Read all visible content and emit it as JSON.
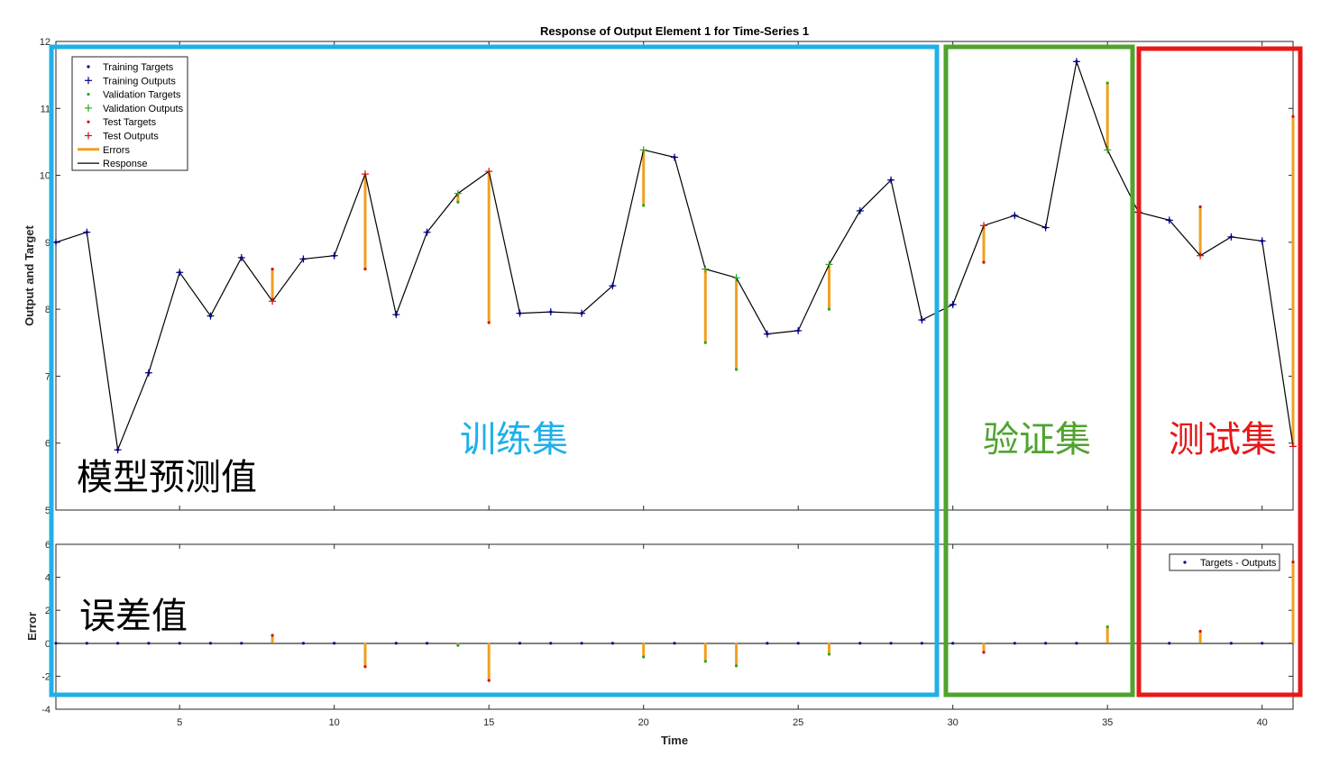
{
  "chart_data": [
    {
      "type": "line",
      "title": "Response of Output Element 1 for Time-Series 1",
      "xlabel": "",
      "ylabel": "Output and Target",
      "xlim": [
        1,
        41
      ],
      "ylim": [
        5,
        12
      ],
      "yticks": [
        5,
        6,
        7,
        8,
        9,
        10,
        11,
        12
      ],
      "xticks": [
        5,
        10,
        15,
        20,
        25,
        30,
        35,
        40
      ],
      "x": [
        1,
        2,
        3,
        4,
        5,
        6,
        7,
        8,
        9,
        10,
        11,
        12,
        13,
        14,
        15,
        16,
        17,
        18,
        19,
        20,
        21,
        22,
        23,
        24,
        25,
        26,
        27,
        28,
        29,
        30,
        31,
        32,
        33,
        34,
        35,
        36,
        37,
        38,
        39,
        40,
        41
      ],
      "series": [
        {
          "name": "Response",
          "values": [
            9.0,
            9.15,
            5.9,
            7.05,
            8.55,
            7.9,
            8.77,
            8.12,
            8.75,
            8.8,
            10.02,
            7.92,
            9.15,
            9.73,
            10.06,
            7.94,
            7.96,
            7.94,
            8.35,
            10.38,
            10.27,
            8.6,
            8.47,
            7.63,
            7.68,
            8.67,
            9.47,
            9.93,
            7.84,
            8.07,
            9.25,
            9.4,
            9.22,
            11.7,
            10.38,
            9.45,
            9.33,
            8.8,
            9.08,
            9.02,
            5.95
          ]
        },
        {
          "name": "Targets",
          "values": [
            9.0,
            9.15,
            5.9,
            7.05,
            8.55,
            7.9,
            8.77,
            8.6,
            8.75,
            8.8,
            8.6,
            7.92,
            9.15,
            9.6,
            7.8,
            7.94,
            7.96,
            7.94,
            8.35,
            9.55,
            10.27,
            7.5,
            7.1,
            7.63,
            7.68,
            8.0,
            9.47,
            9.93,
            7.84,
            8.07,
            8.7,
            9.4,
            9.22,
            11.7,
            11.38,
            9.45,
            9.33,
            9.53,
            9.08,
            9.02,
            10.88
          ]
        }
      ],
      "set_membership": [
        "train",
        "train",
        "train",
        "train",
        "train",
        "train",
        "train",
        "test",
        "train",
        "train",
        "test",
        "train",
        "train",
        "val",
        "test",
        "train",
        "train",
        "train",
        "train",
        "val",
        "train",
        "val",
        "val",
        "train",
        "train",
        "val",
        "train",
        "train",
        "train",
        "train",
        "test",
        "train",
        "train",
        "train",
        "val",
        "train",
        "train",
        "test",
        "train",
        "train",
        "test"
      ],
      "legend": {
        "placement": "top-left",
        "entries": [
          "Training Targets",
          "Training Outputs",
          "Validation Targets",
          "Validation Outputs",
          "Test Targets",
          "Test Outputs",
          "Errors",
          "Response"
        ]
      },
      "colors": {
        "training": "#00008b",
        "validation": "#22aa22",
        "test": "#cc1111",
        "errors": "#f0a020",
        "response": "#000000"
      }
    },
    {
      "type": "stem",
      "title": "",
      "xlabel": "Time",
      "ylabel": "Error",
      "xlim": [
        1,
        41
      ],
      "ylim": [
        -4,
        6
      ],
      "yticks": [
        -4,
        -2,
        0,
        2,
        4,
        6
      ],
      "xticks": [
        5,
        10,
        15,
        20,
        25,
        30,
        35,
        40
      ],
      "legend": {
        "placement": "top-right",
        "entries": [
          "Targets - Outputs"
        ]
      }
    }
  ],
  "annotations": {
    "training_set": "训练集",
    "validation_set": "验证集",
    "test_set": "测试集",
    "model_prediction": "模型预测值",
    "error_value": "误差值",
    "colors": {
      "training_box": "#1fb0e8",
      "validation_box": "#4fa32e",
      "test_box": "#e81818"
    }
  }
}
